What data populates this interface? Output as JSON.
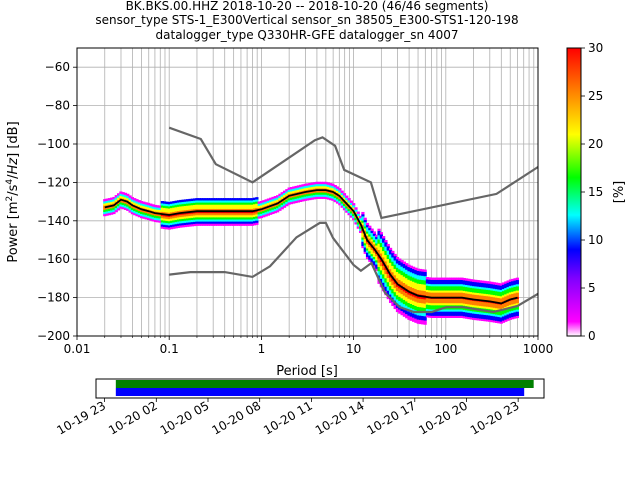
{
  "title": {
    "line1": "BK.BKS.00.HHZ   2018-10-20 -- 2018-10-20  (46/46 segments)",
    "line2": "sensor_type STS-1_E300Vertical sensor_sn 38505_E300-STS1-120-198",
    "line3": "datalogger_type Q330HR-GFE datalogger_sn 4007"
  },
  "chart_data": [
    {
      "type": "heatmap",
      "subtype": "probabilistic power spectral density",
      "xlabel": "Period [s]",
      "ylabel": "Power [m2/s4/Hz] [dB]",
      "xscale": "log",
      "xlim": [
        0.01,
        1000
      ],
      "ylim": [
        -200,
        -50
      ],
      "x_ticks": [
        0.01,
        0.1,
        1,
        10,
        100,
        1000
      ],
      "x_tick_labels": [
        "0.01",
        "0.1",
        "1",
        "10",
        "100",
        "1000"
      ],
      "y_ticks": [
        -200,
        -180,
        -160,
        -140,
        -120,
        -100,
        -80,
        -60
      ],
      "y_tick_labels": [
        "−200",
        "−180",
        "−160",
        "−140",
        "−120",
        "−100",
        "−80",
        "−60"
      ],
      "grid": true,
      "colorbar": {
        "label": "[%]",
        "range": [
          0,
          30
        ],
        "ticks": [
          0,
          5,
          10,
          15,
          20,
          25,
          30
        ],
        "colors": [
          "#ffffff",
          "#ff00ff",
          "#0000ff",
          "#00ffff",
          "#00ff00",
          "#ffff00",
          "#ff8000",
          "#ff0000"
        ]
      },
      "mean_curve": {
        "color": "#000000",
        "points": [
          [
            0.02,
            -133
          ],
          [
            0.025,
            -132
          ],
          [
            0.03,
            -129
          ],
          [
            0.035,
            -130
          ],
          [
            0.04,
            -132
          ],
          [
            0.05,
            -134
          ],
          [
            0.06,
            -135
          ],
          [
            0.07,
            -136
          ],
          [
            0.1,
            -137
          ],
          [
            0.13,
            -136
          ],
          [
            0.2,
            -135
          ],
          [
            0.3,
            -135
          ],
          [
            0.5,
            -135
          ],
          [
            0.8,
            -135
          ],
          [
            1,
            -134
          ],
          [
            1.5,
            -131
          ],
          [
            2,
            -127
          ],
          [
            3,
            -125
          ],
          [
            4,
            -124
          ],
          [
            5,
            -124
          ],
          [
            6,
            -125
          ],
          [
            7,
            -127
          ],
          [
            8,
            -130
          ],
          [
            10,
            -135
          ],
          [
            12,
            -142
          ],
          [
            14,
            -150
          ],
          [
            17,
            -155
          ],
          [
            20,
            -160
          ],
          [
            25,
            -168
          ],
          [
            30,
            -173
          ],
          [
            40,
            -177
          ],
          [
            50,
            -179
          ],
          [
            70,
            -180
          ],
          [
            100,
            -180
          ],
          [
            150,
            -180
          ],
          [
            200,
            -181
          ],
          [
            300,
            -182
          ],
          [
            400,
            -183
          ],
          [
            500,
            -181
          ],
          [
            600,
            -180
          ]
        ]
      },
      "noise_models": {
        "color": "#666666",
        "NHNM": [
          [
            0.1,
            -91.5
          ],
          [
            0.22,
            -97.4
          ],
          [
            0.32,
            -110.5
          ],
          [
            0.8,
            -120
          ],
          [
            3.8,
            -98
          ],
          [
            4.6,
            -96.5
          ],
          [
            6.3,
            -101
          ],
          [
            7.9,
            -113.5
          ],
          [
            15.4,
            -120
          ],
          [
            20,
            -138.5
          ],
          [
            354.8,
            -126
          ],
          [
            1000,
            -112
          ]
        ],
        "NLNM": [
          [
            0.1,
            -168
          ],
          [
            0.17,
            -166.7
          ],
          [
            0.4,
            -166.7
          ],
          [
            0.8,
            -169.2
          ],
          [
            1.24,
            -163.7
          ],
          [
            2.4,
            -148.6
          ],
          [
            4.3,
            -141.1
          ],
          [
            5,
            -141.1
          ],
          [
            6,
            -149
          ],
          [
            10,
            -163
          ],
          [
            12,
            -166
          ],
          [
            15.6,
            -162
          ],
          [
            21.9,
            -177.5
          ],
          [
            31.6,
            -185
          ],
          [
            45,
            -187.5
          ],
          [
            70,
            -187.5
          ],
          [
            101,
            -185
          ],
          [
            154,
            -185
          ],
          [
            328,
            -187.5
          ],
          [
            600,
            -184.4
          ],
          [
            1000,
            -178
          ]
        ]
      }
    },
    {
      "type": "timeline",
      "description": "data coverage",
      "x_tick_labels": [
        "10-19 23",
        "10-20 02",
        "10-20 05",
        "10-20 08",
        "10-20 11",
        "10-20 14",
        "10-20 17",
        "10-20 20",
        "10-20 23"
      ],
      "x_ticks_hours": [
        0,
        3,
        6,
        9,
        12,
        15,
        18,
        21,
        24
      ],
      "range_hours": [
        -0.5,
        25.5
      ],
      "bars": [
        {
          "color": "#008000",
          "start": 0.65,
          "end": 24.9
        },
        {
          "color": "#0000ff",
          "start": 0.65,
          "end": 24.35
        }
      ]
    }
  ]
}
